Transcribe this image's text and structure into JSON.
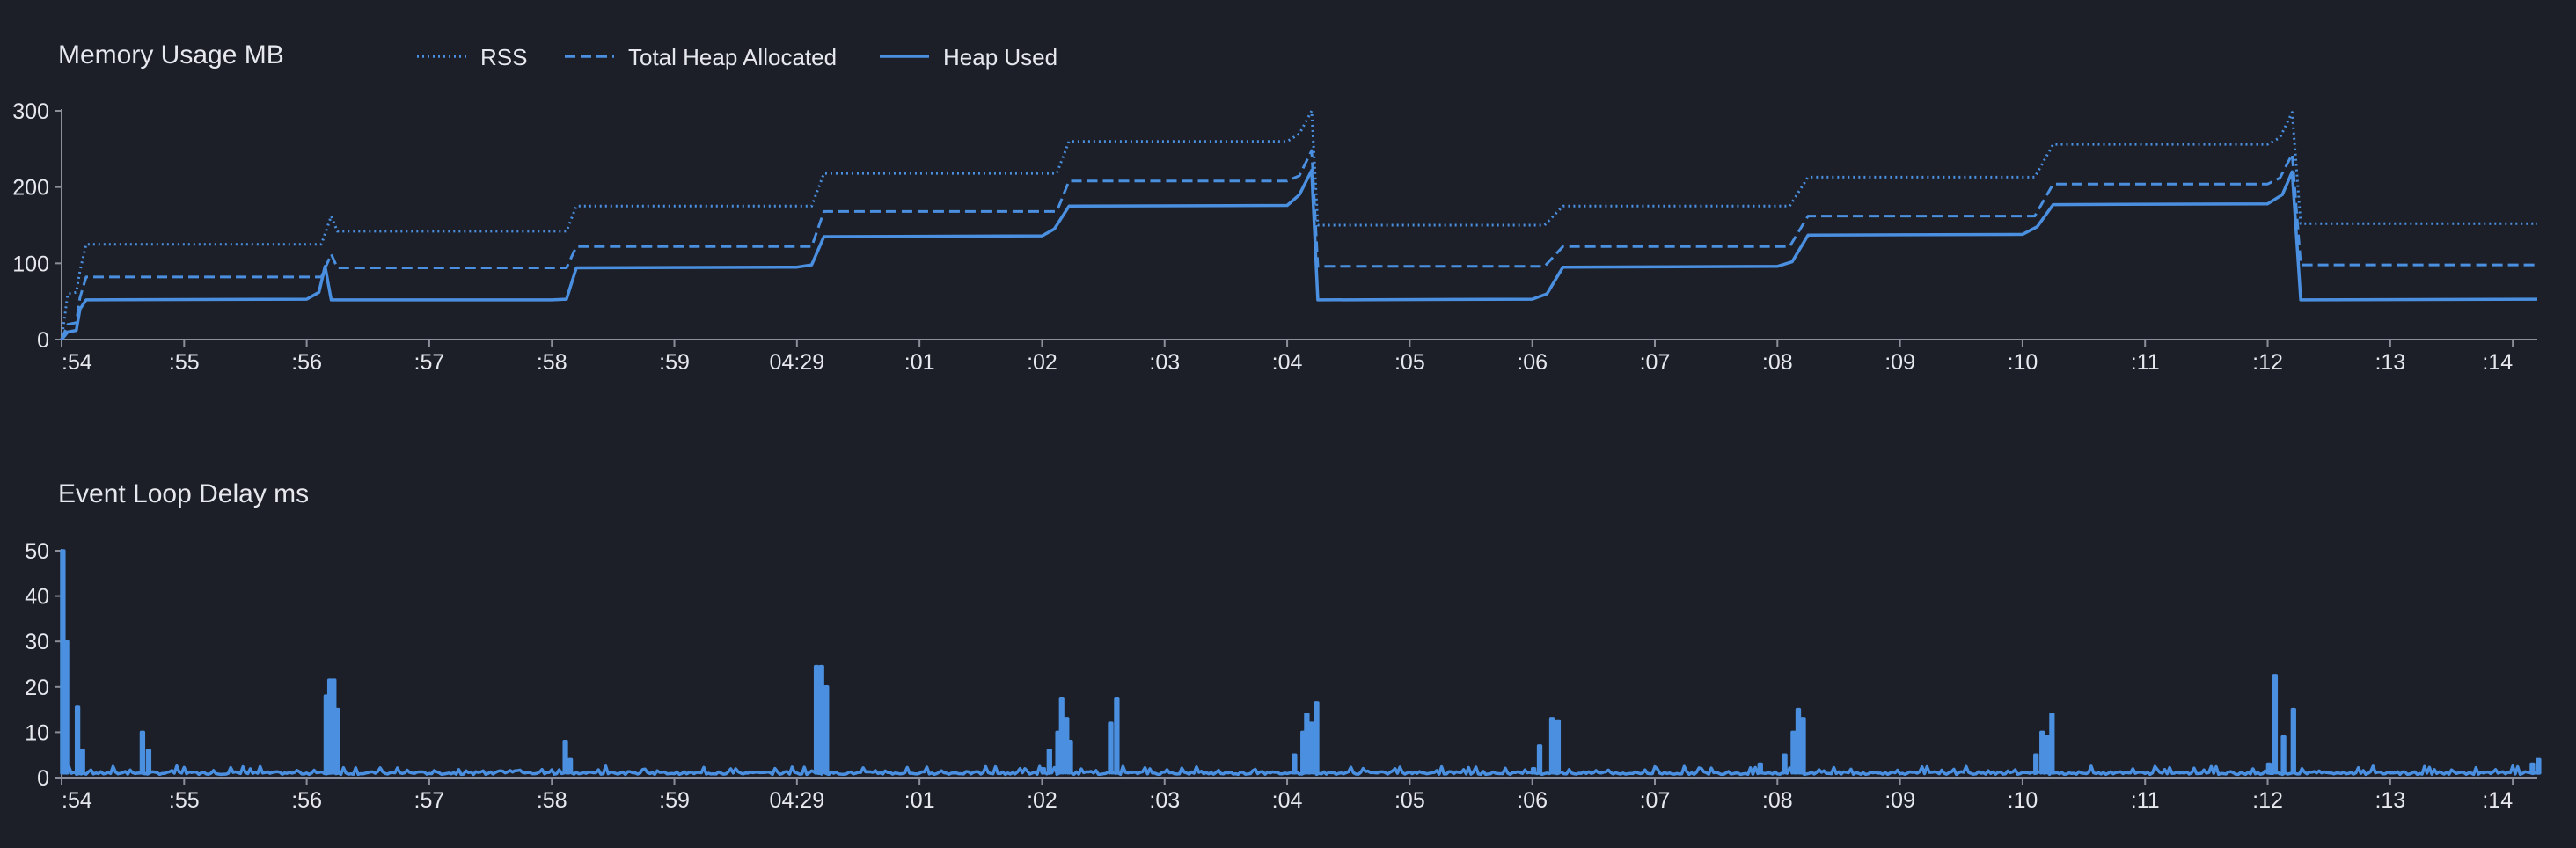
{
  "colors": {
    "background": "#1c1f27",
    "series": "#4a8fe0",
    "axis": "#8a8f99",
    "text": "#e6e8ee"
  },
  "chart_data": [
    {
      "type": "line",
      "title": "Memory Usage MB",
      "xlabel": "",
      "ylabel": "",
      "x_range": [
        0,
        20.2
      ],
      "ylim": [
        0,
        300
      ],
      "y_ticks": [
        0,
        100,
        200,
        300
      ],
      "x_tick_labels": [
        ":54",
        ":55",
        ":56",
        ":57",
        ":58",
        ":59",
        "04:29",
        ":01",
        ":02",
        ":03",
        ":04",
        ":05",
        ":06",
        ":07",
        ":08",
        ":09",
        ":10",
        ":11",
        ":12",
        ":13",
        ":14"
      ],
      "legend_position": "top",
      "grid": false,
      "series": [
        {
          "name": "RSS",
          "style": "dotted",
          "points": [
            [
              0,
              0
            ],
            [
              0.05,
              60
            ],
            [
              0.12,
              62
            ],
            [
              0.15,
              90
            ],
            [
              0.2,
              125
            ],
            [
              2.12,
              125
            ],
            [
              2.2,
              162
            ],
            [
              2.25,
              142
            ],
            [
              4.12,
              142
            ],
            [
              4.2,
              175
            ],
            [
              6.12,
              175
            ],
            [
              6.22,
              218
            ],
            [
              8.12,
              218
            ],
            [
              8.22,
              260
            ],
            [
              10.0,
              260
            ],
            [
              10.1,
              270
            ],
            [
              10.2,
              300
            ],
            [
              10.25,
              150
            ],
            [
              12.1,
              150
            ],
            [
              12.25,
              175
            ],
            [
              14.1,
              175
            ],
            [
              14.25,
              213
            ],
            [
              16.1,
              213
            ],
            [
              16.25,
              256
            ],
            [
              18.0,
              256
            ],
            [
              18.1,
              265
            ],
            [
              18.2,
              298
            ],
            [
              18.27,
              152
            ],
            [
              20.2,
              152
            ]
          ]
        },
        {
          "name": "Total Heap Allocated",
          "style": "dashed",
          "points": [
            [
              0,
              0
            ],
            [
              0.05,
              20
            ],
            [
              0.12,
              22
            ],
            [
              0.15,
              55
            ],
            [
              0.2,
              82
            ],
            [
              2.12,
              82
            ],
            [
              2.2,
              112
            ],
            [
              2.25,
              94
            ],
            [
              4.12,
              94
            ],
            [
              4.2,
              122
            ],
            [
              6.12,
              122
            ],
            [
              6.22,
              168
            ],
            [
              8.12,
              168
            ],
            [
              8.22,
              208
            ],
            [
              10.0,
              208
            ],
            [
              10.1,
              215
            ],
            [
              10.2,
              248
            ],
            [
              10.25,
              96
            ],
            [
              12.1,
              96
            ],
            [
              12.25,
              122
            ],
            [
              14.1,
              122
            ],
            [
              14.25,
              162
            ],
            [
              16.1,
              162
            ],
            [
              16.25,
              204
            ],
            [
              18.0,
              204
            ],
            [
              18.1,
              212
            ],
            [
              18.2,
              243
            ],
            [
              18.27,
              98
            ],
            [
              20.2,
              98
            ]
          ]
        },
        {
          "name": "Heap Used",
          "style": "solid",
          "points": [
            [
              0,
              0
            ],
            [
              0.05,
              10
            ],
            [
              0.12,
              12
            ],
            [
              0.15,
              40
            ],
            [
              0.2,
              52
            ],
            [
              2.0,
              53
            ],
            [
              2.1,
              62
            ],
            [
              2.15,
              96
            ],
            [
              2.2,
              52
            ],
            [
              4.0,
              52
            ],
            [
              4.12,
              53
            ],
            [
              4.2,
              94
            ],
            [
              6.0,
              95
            ],
            [
              6.12,
              98
            ],
            [
              6.22,
              135
            ],
            [
              8.0,
              136
            ],
            [
              8.1,
              145
            ],
            [
              8.22,
              175
            ],
            [
              10.0,
              176
            ],
            [
              10.1,
              190
            ],
            [
              10.2,
              222
            ],
            [
              10.25,
              52
            ],
            [
              12.0,
              53
            ],
            [
              12.12,
              60
            ],
            [
              12.25,
              95
            ],
            [
              14.0,
              96
            ],
            [
              14.12,
              102
            ],
            [
              14.25,
              137
            ],
            [
              16.0,
              138
            ],
            [
              16.12,
              148
            ],
            [
              16.25,
              177
            ],
            [
              18.0,
              178
            ],
            [
              18.12,
              190
            ],
            [
              18.2,
              220
            ],
            [
              18.27,
              52
            ],
            [
              20.2,
              53
            ]
          ]
        }
      ]
    },
    {
      "type": "line",
      "title": "Event Loop Delay ms",
      "xlabel": "",
      "ylabel": "",
      "x_range": [
        0,
        20.2
      ],
      "ylim": [
        0,
        50
      ],
      "y_ticks": [
        0,
        10,
        20,
        30,
        40,
        50
      ],
      "x_tick_labels": [
        ":54",
        ":55",
        ":56",
        ":57",
        ":58",
        ":59",
        "04:29",
        ":01",
        ":02",
        ":03",
        ":04",
        ":05",
        ":06",
        ":07",
        ":08",
        ":09",
        ":10",
        ":11",
        ":12",
        ":13",
        ":14"
      ],
      "grid": false,
      "baseline": 1,
      "series": [
        {
          "name": "",
          "style": "solid",
          "spikes": [
            [
              0.0,
              50
            ],
            [
              0.03,
              30
            ],
            [
              0.12,
              15.5
            ],
            [
              0.16,
              6
            ],
            [
              0.65,
              10
            ],
            [
              0.7,
              6
            ],
            [
              2.15,
              18
            ],
            [
              2.18,
              21.5
            ],
            [
              2.21,
              21.5
            ],
            [
              2.24,
              15
            ],
            [
              4.1,
              8
            ],
            [
              4.14,
              4
            ],
            [
              6.15,
              24.5
            ],
            [
              6.19,
              24.5
            ],
            [
              6.23,
              20
            ],
            [
              8.0,
              2
            ],
            [
              8.05,
              6
            ],
            [
              8.12,
              10
            ],
            [
              8.15,
              17.5
            ],
            [
              8.19,
              13
            ],
            [
              8.22,
              8
            ],
            [
              8.55,
              12
            ],
            [
              8.6,
              17.5
            ],
            [
              10.05,
              5
            ],
            [
              10.12,
              10
            ],
            [
              10.15,
              14
            ],
            [
              10.19,
              12
            ],
            [
              10.23,
              16.5
            ],
            [
              12.0,
              2
            ],
            [
              12.05,
              7
            ],
            [
              12.15,
              13
            ],
            [
              12.2,
              12.5
            ],
            [
              13.85,
              3
            ],
            [
              14.05,
              5
            ],
            [
              14.12,
              10
            ],
            [
              14.16,
              15
            ],
            [
              14.2,
              13
            ],
            [
              16.1,
              5
            ],
            [
              16.15,
              10
            ],
            [
              16.19,
              9
            ],
            [
              16.23,
              14
            ],
            [
              18.0,
              3
            ],
            [
              18.05,
              22.5
            ],
            [
              18.12,
              9
            ],
            [
              18.2,
              15
            ],
            [
              20.15,
              3
            ],
            [
              20.2,
              4
            ]
          ]
        }
      ]
    }
  ]
}
